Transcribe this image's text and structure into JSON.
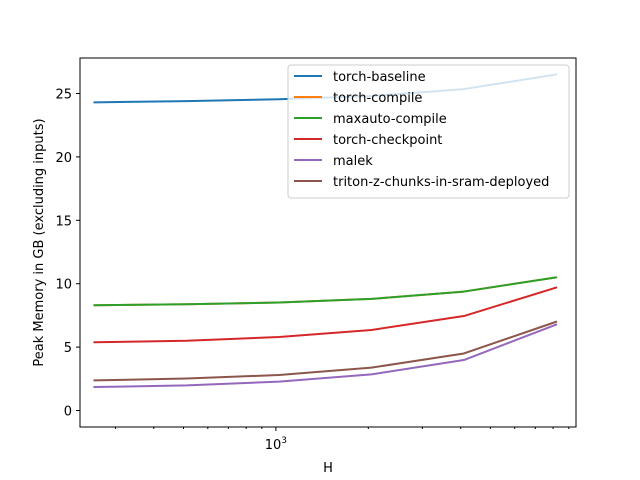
{
  "chart_data": {
    "type": "line",
    "title": "",
    "xlabel": "H",
    "ylabel": "Peak Memory in GB (excluding inputs)",
    "xscale": "log",
    "xlim": [
      230,
      9500
    ],
    "ylim": [
      -1.3,
      27.8
    ],
    "grid": false,
    "legend_position": "top-right",
    "x_major_ticks": [
      {
        "value": 1000,
        "base": "10",
        "exponent": "3"
      }
    ],
    "x_minor_ticks": [
      300,
      400,
      500,
      600,
      700,
      800,
      900,
      2000,
      3000,
      4000,
      5000,
      6000,
      7000,
      8000,
      9000
    ],
    "y_ticks": [
      {
        "value": 0,
        "label": "0"
      },
      {
        "value": 5,
        "label": "5"
      },
      {
        "value": 10,
        "label": "10"
      },
      {
        "value": 15,
        "label": "15"
      },
      {
        "value": 20,
        "label": "20"
      },
      {
        "value": 25,
        "label": "25"
      }
    ],
    "x": [
      256,
      512,
      1024,
      2048,
      4096,
      8192
    ],
    "series": [
      {
        "name": "torch-baseline",
        "color": "#1f77b4",
        "values": [
          24.3,
          24.4,
          24.55,
          24.8,
          25.35,
          26.5
        ]
      },
      {
        "name": "torch-compile",
        "color": "#ff7f0e",
        "values": [
          8.3,
          8.38,
          8.52,
          8.8,
          9.38,
          10.5
        ]
      },
      {
        "name": "maxauto-compile",
        "color": "#2ca02c",
        "values": [
          8.3,
          8.38,
          8.52,
          8.8,
          9.38,
          10.5
        ]
      },
      {
        "name": "torch-checkpoint",
        "color": "#d62728",
        "values": [
          5.38,
          5.5,
          5.8,
          6.35,
          7.45,
          9.7
        ]
      },
      {
        "name": "malek",
        "color": "#9467bd",
        "values": [
          1.85,
          1.98,
          2.28,
          2.85,
          3.98,
          6.78
        ]
      },
      {
        "name": "triton-z-chunks-in-sram-deployed",
        "color": "#8c564b",
        "values": [
          2.38,
          2.52,
          2.8,
          3.38,
          4.5,
          7.0
        ]
      }
    ]
  }
}
